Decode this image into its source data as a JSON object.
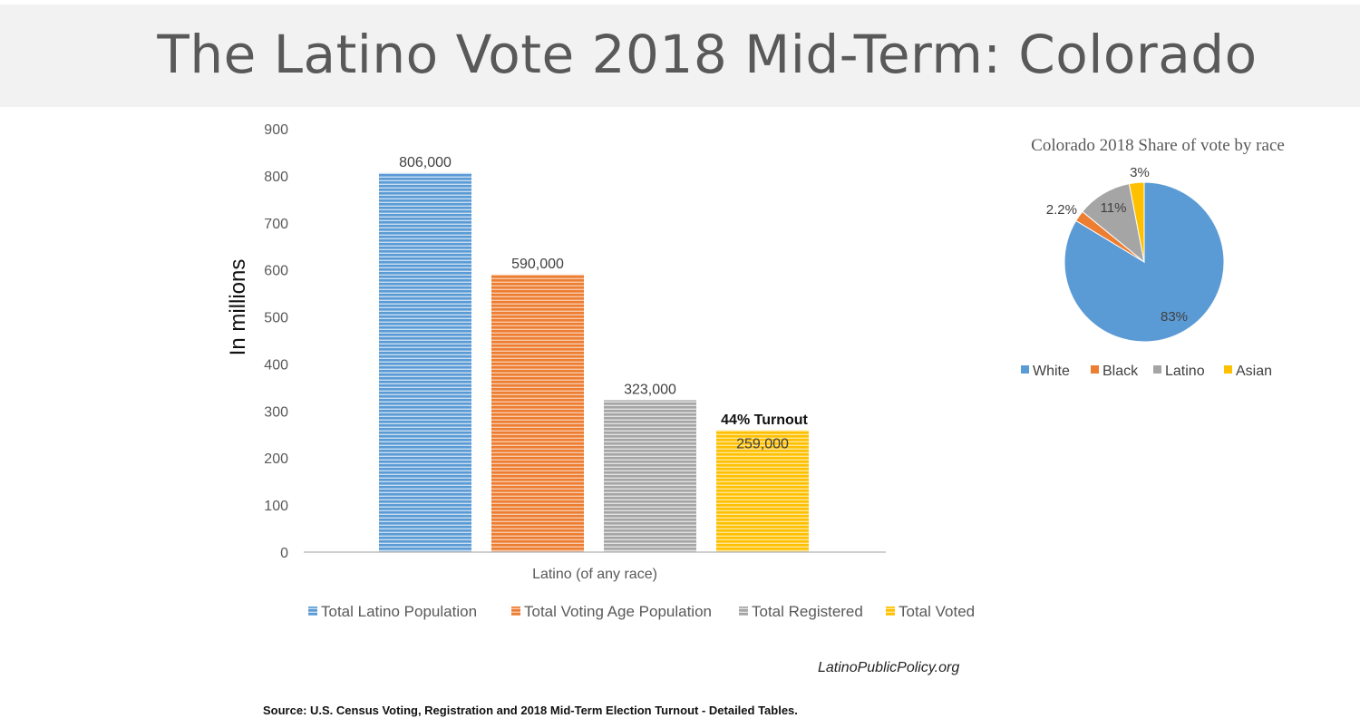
{
  "page": {
    "title": "The Latino Vote 2018 Mid-Term: Colorado",
    "site_credit": "LatinoPublicPolicy.org",
    "source_note": "Source: U.S. Census Voting, Registration and 2018 Mid-Term Election Turnout - Detailed Tables."
  },
  "chart_data": [
    {
      "type": "bar",
      "title": "",
      "categories": [
        "Latino (of any race)"
      ],
      "ylabel": "In millions",
      "xlabel": "",
      "ylim": [
        0,
        900
      ],
      "yticks": [
        0,
        100,
        200,
        300,
        400,
        500,
        600,
        700,
        800,
        900
      ],
      "legend_position": "bottom",
      "series": [
        {
          "name": "Total Latino Population",
          "values": [
            806
          ],
          "data_label": "806,000",
          "color": "#5b9bd5"
        },
        {
          "name": "Total Voting Age Population",
          "values": [
            590
          ],
          "data_label": "590,000",
          "color": "#ed7d31"
        },
        {
          "name": "Total Registered",
          "values": [
            323
          ],
          "data_label": "323,000",
          "color": "#a5a5a5"
        },
        {
          "name": "Total Voted",
          "values": [
            259
          ],
          "data_label": "259,000",
          "color": "#ffc000"
        }
      ],
      "annotation": "44% Turnout"
    },
    {
      "type": "pie",
      "title": "Colorado 2018 Share of vote by race",
      "legend_position": "bottom",
      "slices": [
        {
          "name": "White",
          "value": 83,
          "label": "83%",
          "color": "#5b9bd5"
        },
        {
          "name": "Black",
          "value": 2.2,
          "label": "2.2%",
          "color": "#ed7d31"
        },
        {
          "name": "Latino",
          "value": 11,
          "label": "11%",
          "color": "#a5a5a5"
        },
        {
          "name": "Asian",
          "value": 3,
          "label": "3%",
          "color": "#ffc000"
        }
      ]
    }
  ]
}
